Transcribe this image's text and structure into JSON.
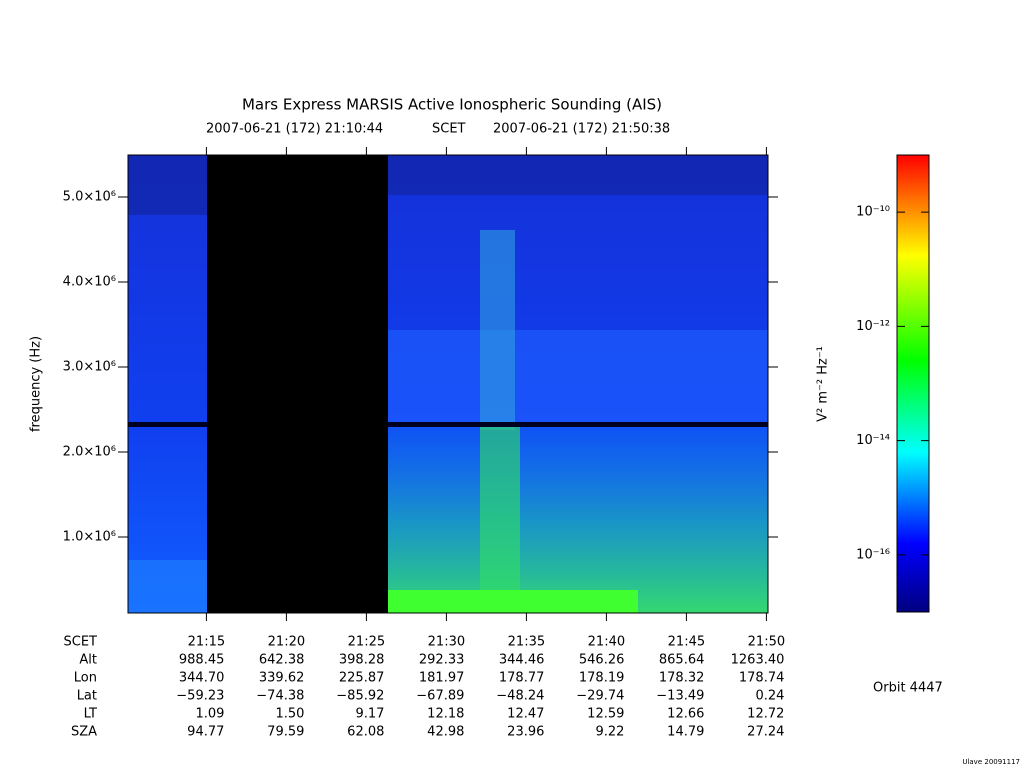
{
  "chart_data": {
    "type": "spectrogram",
    "title": "Mars Express MARSIS Active Ionospheric Sounding (AIS)",
    "start_time": "2007-06-21 (172) 21:10:44",
    "time_system": "SCET",
    "end_time": "2007-06-21 (172) 21:50:38",
    "y_label": "frequency (Hz)",
    "xlim": [
      1270.1,
      1310.1
    ],
    "xticks": [
      {
        "value": 1275,
        "label": "21:15"
      },
      {
        "value": 1280,
        "label": "21:20"
      },
      {
        "value": 1285,
        "label": "21:25"
      },
      {
        "value": 1290,
        "label": "21:30"
      },
      {
        "value": 1295,
        "label": "21:35"
      },
      {
        "value": 1300,
        "label": "21:40"
      },
      {
        "value": 1305,
        "label": "21:45"
      },
      {
        "value": 1310,
        "label": "21:50"
      }
    ],
    "ylim": [
      106000,
      5494000
    ],
    "yticks": [
      {
        "value": 1000000,
        "label": "1.0×10⁶"
      },
      {
        "value": 2000000,
        "label": "2.0×10⁶"
      },
      {
        "value": 3000000,
        "label": "3.0×10⁶"
      },
      {
        "value": 4000000,
        "label": "4.0×10⁶"
      },
      {
        "value": 5000000,
        "label": "5.0×10⁶"
      }
    ],
    "colorbar": {
      "label": "V² m⁻² Hz⁻¹",
      "log_scale": true,
      "clim": [
        1e-17,
        1e-09
      ],
      "ticks": [
        {
          "value": 1e-16,
          "label": "10⁻¹⁶"
        },
        {
          "value": 1e-14,
          "label": "10⁻¹⁴"
        },
        {
          "value": 1e-12,
          "label": "10⁻¹²"
        },
        {
          "value": 1e-10,
          "label": "10⁻¹⁰"
        }
      ]
    },
    "ephemeris": [
      {
        "label": "Alt",
        "values": [
          "988.45",
          "642.38",
          "398.28",
          "292.33",
          "344.46",
          "546.26",
          "865.64",
          "1263.40"
        ]
      },
      {
        "label": "Lon",
        "values": [
          "344.70",
          "339.62",
          "225.87",
          "181.97",
          "178.77",
          "178.19",
          "178.32",
          "178.74"
        ]
      },
      {
        "label": "Lat",
        "values": [
          "−59.23",
          "−74.38",
          "−85.92",
          "−67.89",
          "−48.24",
          "−29.74",
          "−13.49",
          "0.24"
        ]
      },
      {
        "label": "LT",
        "values": [
          "1.09",
          "1.50",
          "9.17",
          "12.18",
          "12.47",
          "12.59",
          "12.66",
          "12.72"
        ]
      },
      {
        "label": "SZA",
        "values": [
          "94.77",
          "79.59",
          "62.08",
          "42.98",
          "23.96",
          "9.22",
          "14.79",
          "27.24"
        ]
      }
    ],
    "orbit": "Orbit 4447",
    "credit": "Ulave 20091117"
  }
}
